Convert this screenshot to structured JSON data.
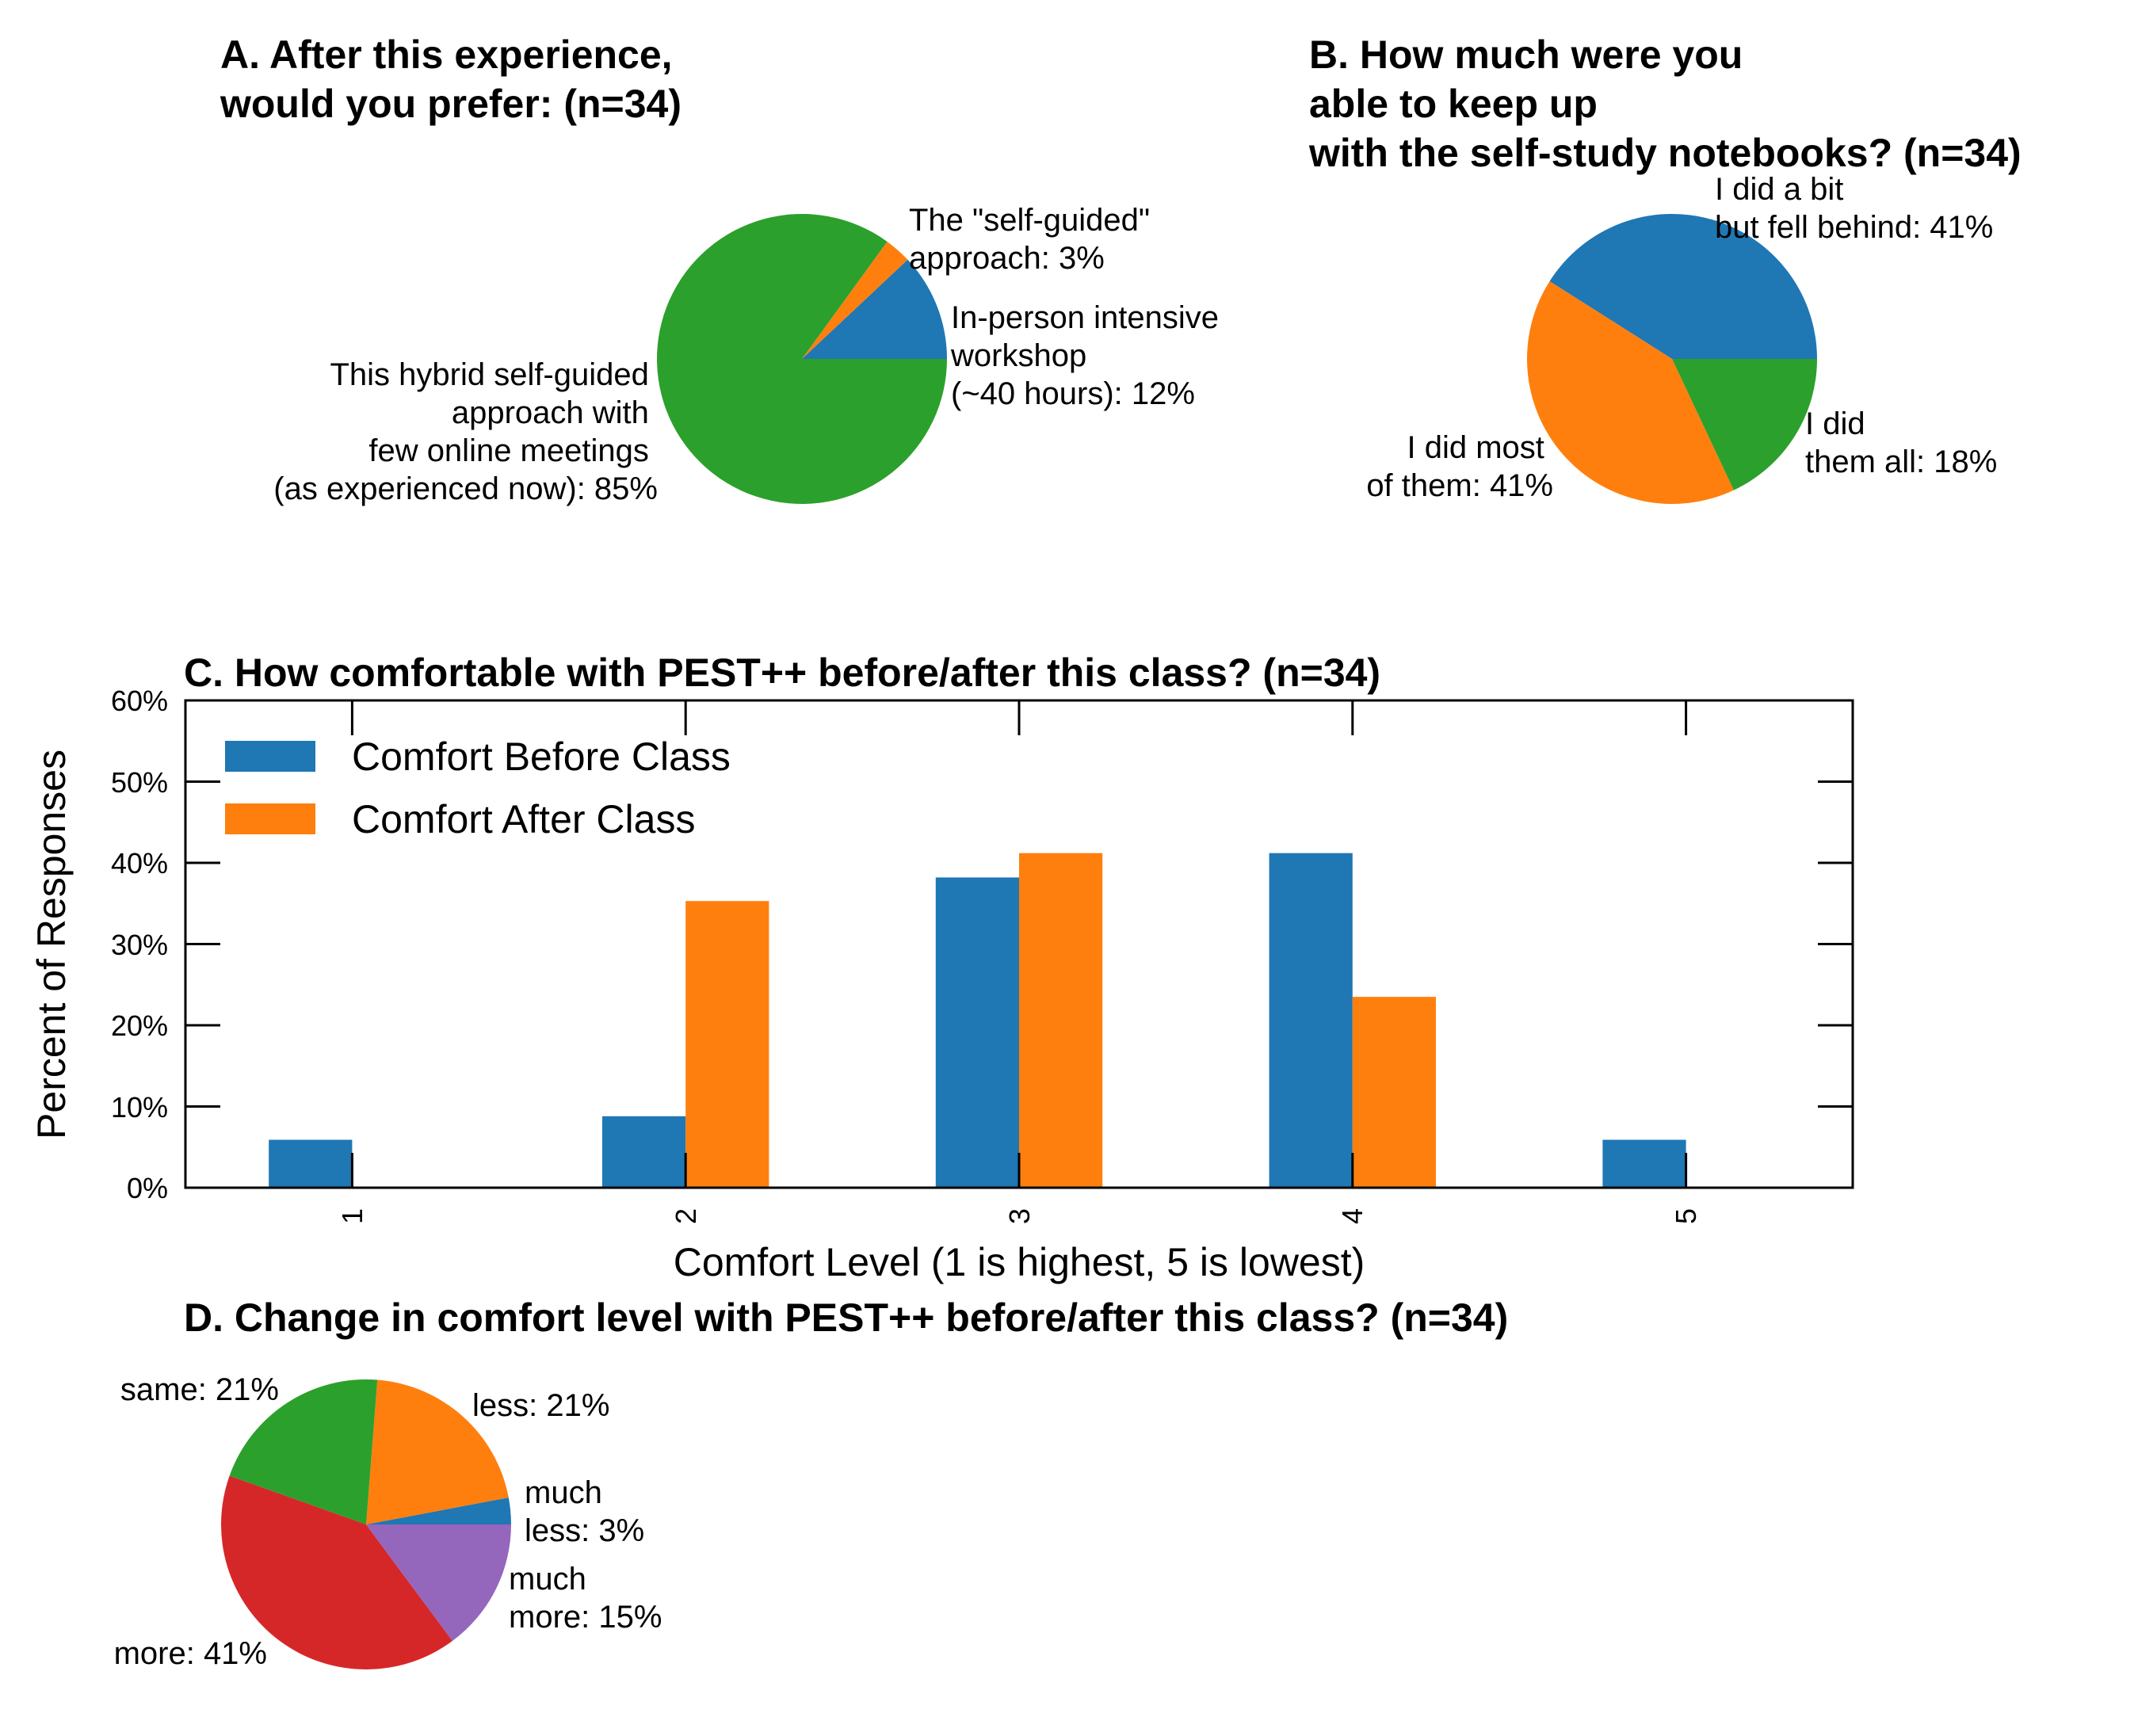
{
  "colors": {
    "blue": "#1f77b4",
    "orange": "#ff7f0e",
    "green": "#2ca02c",
    "red": "#d62728",
    "purple": "#9467bd"
  },
  "chart_data": [
    {
      "id": "A",
      "type": "pie",
      "title": [
        "A. After this experience,",
        "would you prefer: (n=34)"
      ],
      "slices": [
        {
          "value": 12,
          "color": "#1f77b4",
          "label": [
            "In-person intensive",
            "workshop",
            "(~40 hours): 12%"
          ]
        },
        {
          "value": 3,
          "color": "#ff7f0e",
          "label": [
            "The \"self-guided\"",
            "approach: 3%"
          ]
        },
        {
          "value": 85,
          "color": "#2ca02c",
          "label": [
            "This hybrid self-guided",
            "approach with",
            "few online meetings",
            "(as experienced now): 85%"
          ]
        }
      ]
    },
    {
      "id": "B",
      "type": "pie",
      "title": [
        "B. How much were you",
        "able to keep up",
        "with the self-study notebooks? (n=34)"
      ],
      "slices": [
        {
          "value": 41,
          "color": "#1f77b4",
          "label": [
            "I did a bit",
            "but fell behind: 41%"
          ]
        },
        {
          "value": 41,
          "color": "#ff7f0e",
          "label": [
            "I did most",
            "of them: 41%"
          ]
        },
        {
          "value": 18,
          "color": "#2ca02c",
          "label": [
            "I did",
            "them all: 18%"
          ]
        }
      ]
    },
    {
      "id": "C",
      "type": "bar",
      "title": "C. How comfortable with PEST++ before/after this class? (n=34)",
      "xlabel": "Comfort Level (1 is highest, 5 is lowest)",
      "ylabel": "Percent of Responses",
      "categories": [
        "1",
        "2",
        "3",
        "4",
        "5"
      ],
      "ylim": [
        0,
        60
      ],
      "yticks": [
        "0%",
        "10%",
        "20%",
        "30%",
        "40%",
        "50%",
        "60%"
      ],
      "legend_position": "top-left",
      "grid": false,
      "series": [
        {
          "name": "Comfort Before Class",
          "color": "#1f77b4",
          "values": [
            5.9,
            8.8,
            38.2,
            41.2,
            5.9
          ]
        },
        {
          "name": "Comfort After Class",
          "color": "#ff7f0e",
          "values": [
            0,
            35.3,
            41.2,
            23.5,
            0
          ]
        }
      ]
    },
    {
      "id": "D",
      "type": "pie",
      "title": "D. Change in comfort level with PEST++ before/after this class? (n=34)",
      "slices": [
        {
          "value": 3,
          "color": "#1f77b4",
          "label": [
            "much",
            "less: 3%"
          ]
        },
        {
          "value": 21,
          "color": "#ff7f0e",
          "label": [
            "less: 21%"
          ]
        },
        {
          "value": 21,
          "color": "#2ca02c",
          "label": [
            "same: 21%"
          ]
        },
        {
          "value": 41,
          "color": "#d62728",
          "label": [
            "more: 41%"
          ]
        },
        {
          "value": 15,
          "color": "#9467bd",
          "label": [
            "much",
            "more: 15%"
          ]
        }
      ]
    }
  ]
}
